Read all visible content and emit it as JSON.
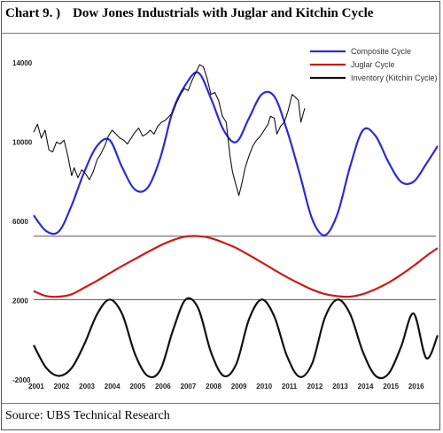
{
  "title": {
    "chart_label": "Chart 9. )",
    "text": "Dow Jones Industrials with Juglar and Kitchin Cycle"
  },
  "source": "Source: UBS Technical Research",
  "colors": {
    "composite": "#2b2bd6",
    "juglar": "#d01818",
    "kitchin": "#111111",
    "dow": "#111111"
  },
  "chart_data": {
    "type": "line",
    "xlim": [
      2001,
      2016.95
    ],
    "x_ticks": [
      "2001",
      "2002",
      "2003",
      "2004",
      "2005",
      "2006",
      "2007",
      "2008",
      "2009",
      "2010",
      "2011",
      "2012",
      "2013",
      "2014",
      "2015",
      "2016"
    ],
    "y_ticks": [
      "14000",
      "10000",
      "6000",
      "2000",
      "-2000"
    ],
    "ylim": [
      -2000,
      15200
    ],
    "grid": false,
    "legend_position": "top-right",
    "series": [
      {
        "name": "Composite Cycle",
        "color": "#2b2bd6",
        "x": [
          2001,
          2001.5,
          2002,
          2002.5,
          2003,
          2003.5,
          2004,
          2004.5,
          2005,
          2005.5,
          2006,
          2006.5,
          2007,
          2007.5,
          2008,
          2008.5,
          2009,
          2009.5,
          2010,
          2010.5,
          2011,
          2011.5,
          2012,
          2012.5,
          2013,
          2013.5,
          2014,
          2014.5,
          2015,
          2015.5,
          2016,
          2016.5,
          2016.95
        ],
        "y": [
          6300,
          5500,
          5500,
          6800,
          8500,
          9800,
          10100,
          8700,
          7600,
          7700,
          9200,
          11600,
          12900,
          13500,
          12200,
          10600,
          10000,
          11200,
          12400,
          12300,
          10600,
          8400,
          6100,
          5300,
          6400,
          8800,
          10600,
          10300,
          9000,
          8000,
          8000,
          8900,
          9800
        ]
      },
      {
        "name": "Juglar Cycle",
        "color": "#d01818",
        "x": [
          2001,
          2001.5,
          2002,
          2002.5,
          2003,
          2003.5,
          2004,
          2004.5,
          2005,
          2005.5,
          2006,
          2006.5,
          2007,
          2007.5,
          2008,
          2008.5,
          2009,
          2009.5,
          2010,
          2010.5,
          2011,
          2011.5,
          2012,
          2012.5,
          2013,
          2013.5,
          2014,
          2014.5,
          2015,
          2015.5,
          2016,
          2016.5,
          2016.95
        ],
        "y": [
          2480,
          2230,
          2200,
          2320,
          2650,
          3000,
          3380,
          3750,
          4100,
          4450,
          4780,
          5050,
          5230,
          5250,
          5150,
          4920,
          4650,
          4300,
          3930,
          3550,
          3180,
          2850,
          2550,
          2330,
          2220,
          2200,
          2330,
          2580,
          2900,
          3300,
          3750,
          4250,
          4650
        ]
      },
      {
        "name": "Inventory (Kitchin Cycle)",
        "color": "#111111",
        "x": [
          2001,
          2001.5,
          2002,
          2002.5,
          2003,
          2003.5,
          2004,
          2004.5,
          2005,
          2005.5,
          2006,
          2006.5,
          2007,
          2007.5,
          2008,
          2008.5,
          2009,
          2009.5,
          2010,
          2010.5,
          2011,
          2011.5,
          2012,
          2012.5,
          2013,
          2013.5,
          2014,
          2014.5,
          2015,
          2015.5,
          2016,
          2016.5,
          2016.95
        ],
        "y": [
          -250,
          -1400,
          -1800,
          -1400,
          -200,
          1300,
          2050,
          1300,
          -700,
          -1800,
          -1500,
          500,
          2050,
          1600,
          -600,
          -1800,
          -1200,
          1050,
          2050,
          1200,
          -800,
          -1850,
          -1150,
          1150,
          2050,
          1300,
          -600,
          -1800,
          -1700,
          -350,
          1350,
          -900,
          250
        ]
      },
      {
        "name": "Dow Jones Industrials",
        "color": "#111111",
        "x": [
          2001,
          2001.15,
          2001.3,
          2001.45,
          2001.6,
          2001.75,
          2001.9,
          2002.05,
          2002.2,
          2002.35,
          2002.5,
          2002.6,
          2002.75,
          2002.9,
          2003.05,
          2003.2,
          2003.35,
          2003.5,
          2003.65,
          2003.8,
          2003.95,
          2004.1,
          2004.25,
          2004.4,
          2004.55,
          2004.7,
          2004.85,
          2005,
          2005.15,
          2005.3,
          2005.45,
          2005.6,
          2005.75,
          2005.9,
          2006.05,
          2006.2,
          2006.35,
          2006.5,
          2006.65,
          2006.8,
          2006.95,
          2007.1,
          2007.25,
          2007.4,
          2007.55,
          2007.7,
          2007.85,
          2008,
          2008.15,
          2008.3,
          2008.45,
          2008.6,
          2008.75,
          2008.85,
          2008.95,
          2009.1,
          2009.2,
          2009.35,
          2009.5,
          2009.65,
          2009.8,
          2009.95,
          2010.1,
          2010.25,
          2010.35,
          2010.5,
          2010.6,
          2010.75,
          2010.9,
          2011.05,
          2011.2,
          2011.3,
          2011.45,
          2011.55,
          2011.7
        ],
        "y": [
          10500,
          10900,
          10200,
          10600,
          9600,
          9500,
          10000,
          9900,
          10100,
          9300,
          8300,
          8700,
          8200,
          8600,
          8400,
          8100,
          8500,
          9100,
          9400,
          9800,
          10300,
          10600,
          10400,
          10200,
          10100,
          9900,
          10200,
          10500,
          10700,
          10300,
          10400,
          10600,
          10400,
          10800,
          11000,
          11100,
          11300,
          11500,
          12000,
          12400,
          12700,
          12600,
          13100,
          13500,
          13900,
          13800,
          13200,
          12400,
          12500,
          12100,
          11300,
          11000,
          9300,
          8500,
          8000,
          7300,
          7800,
          8700,
          9300,
          9800,
          10100,
          10300,
          10600,
          10900,
          11300,
          11200,
          10400,
          10800,
          11000,
          11600,
          12400,
          12300,
          12100,
          11000,
          11700
        ]
      }
    ]
  }
}
